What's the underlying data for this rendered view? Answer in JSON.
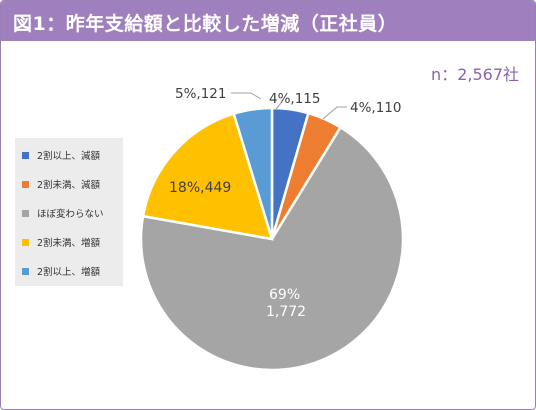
{
  "header": {
    "title": "図1：昨年支給額と比較した増減（正社員）"
  },
  "note": "n：2,567社",
  "colors": {
    "header_bg": "#a07fbf",
    "accent_text": "#8a63b0"
  },
  "chart_data": {
    "type": "pie",
    "title": "図1：昨年支給額と比較した増減（正社員）",
    "n_label": "n：2,567社",
    "legend_position": "left",
    "slices": [
      {
        "name": "2割以上、減額",
        "value": 115,
        "percent": 4,
        "label": "4%,115",
        "color": "#4472c4"
      },
      {
        "name": "2割未満、減額",
        "value": 110,
        "percent": 4,
        "label": "4%,110",
        "color": "#ed7d31"
      },
      {
        "name": "ほぼ変わらない",
        "value": 1772,
        "percent": 69,
        "label_pct": "69%",
        "label_val": "1,772",
        "color": "#a5a5a5"
      },
      {
        "name": "2割未満、増額",
        "value": 449,
        "percent": 18,
        "label": "18%,449",
        "color": "#ffc000"
      },
      {
        "name": "2割以上、増額",
        "value": 121,
        "percent": 5,
        "label": "5%,121",
        "color": "#5b9bd5"
      }
    ]
  }
}
